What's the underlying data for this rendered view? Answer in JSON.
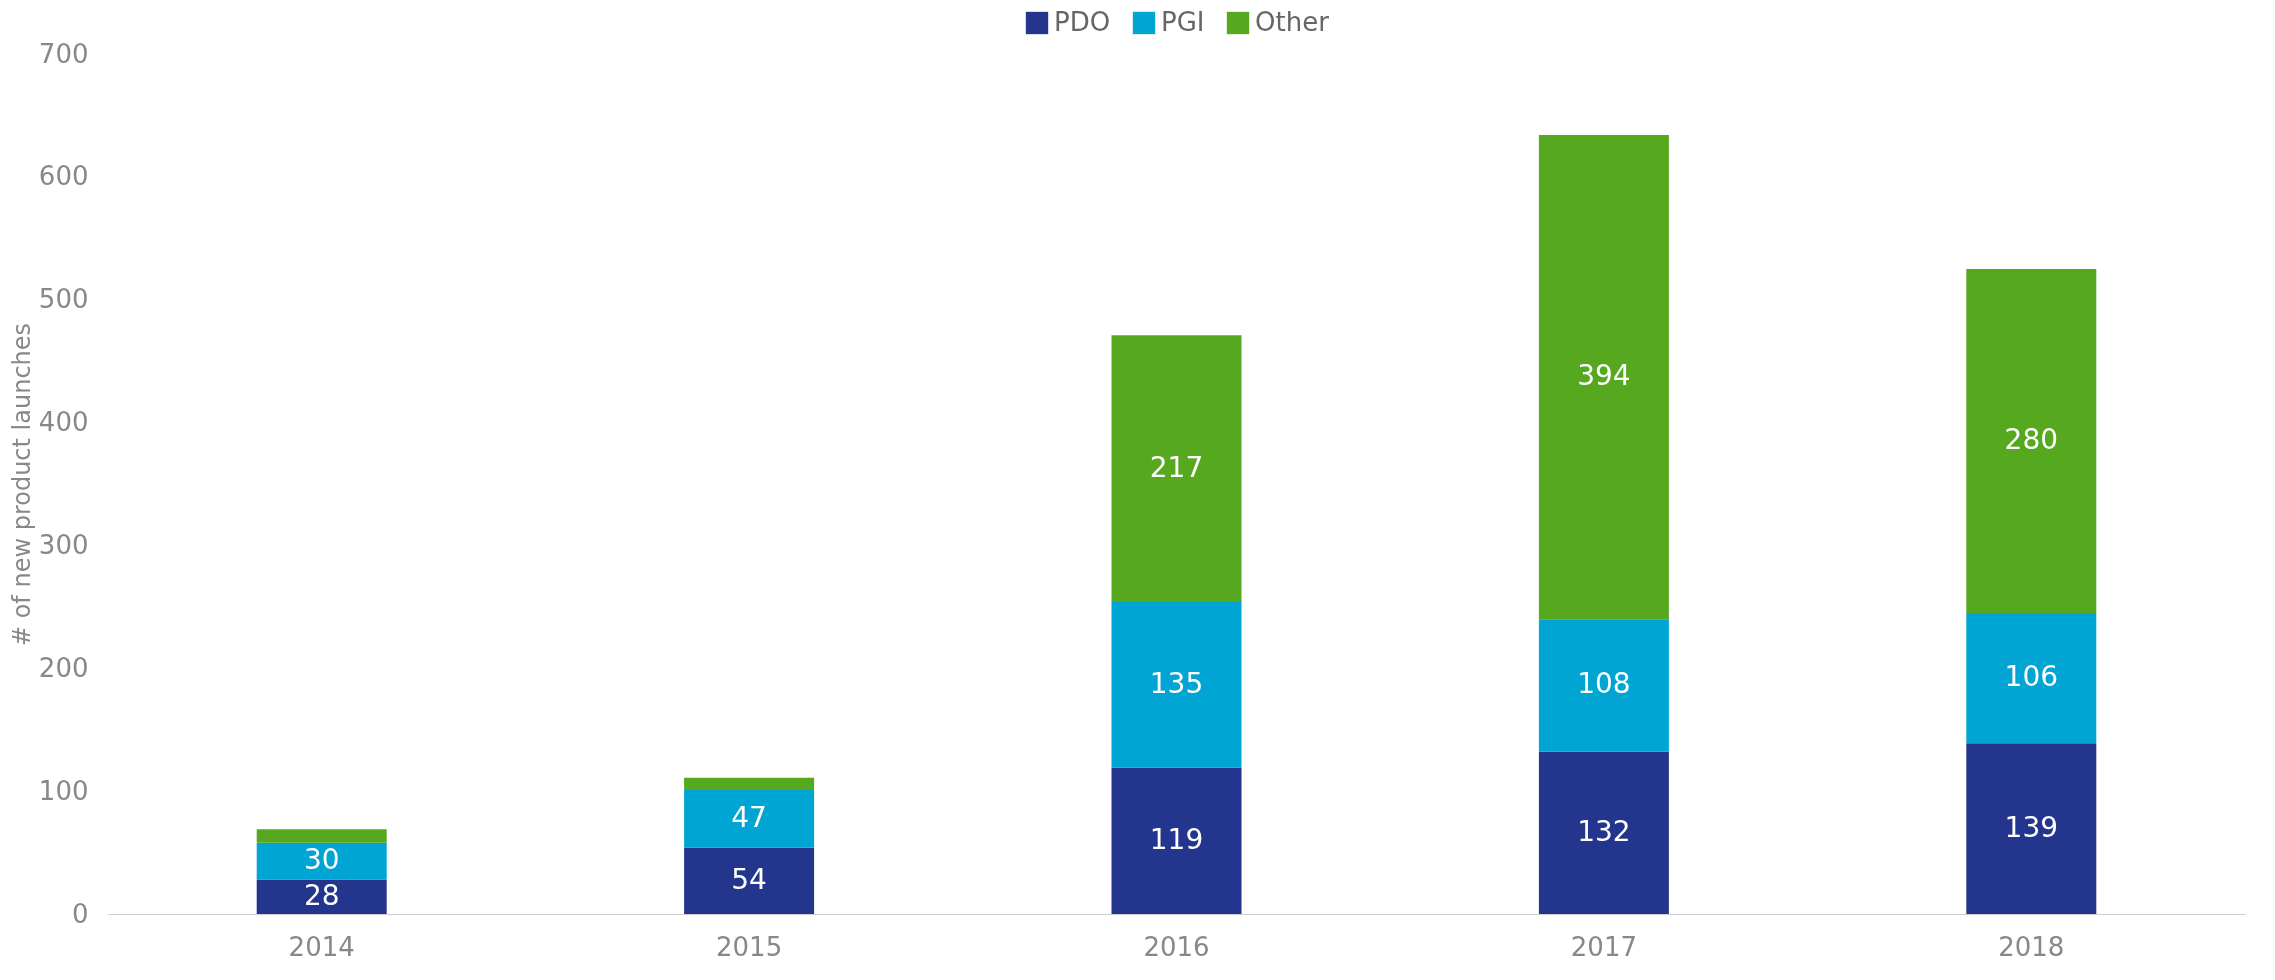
{
  "chart_data": {
    "type": "bar",
    "stacked": true,
    "ylabel": "# of new product launches",
    "categories": [
      "2014",
      "2015",
      "2016",
      "2017",
      "2018"
    ],
    "series": [
      {
        "name": "PDO",
        "color": "#23358c",
        "values": [
          28,
          54,
          119,
          132,
          139
        ],
        "value_labels": [
          "28",
          "54",
          "119",
          "132",
          "139"
        ]
      },
      {
        "name": "PGI",
        "color": "#00a5d4",
        "values": [
          30,
          47,
          135,
          108,
          106
        ],
        "value_labels": [
          "30",
          "47",
          "135",
          "108",
          "106"
        ]
      },
      {
        "name": "Other",
        "color": "#56a81f",
        "values": [
          11,
          10,
          217,
          394,
          280
        ],
        "value_labels": [
          null,
          null,
          "217",
          "394",
          "280"
        ]
      }
    ],
    "ylim": [
      0,
      700
    ],
    "yticks": [
      0,
      100,
      200,
      300,
      400,
      500,
      600,
      700
    ],
    "grid": false,
    "legend": "top"
  }
}
